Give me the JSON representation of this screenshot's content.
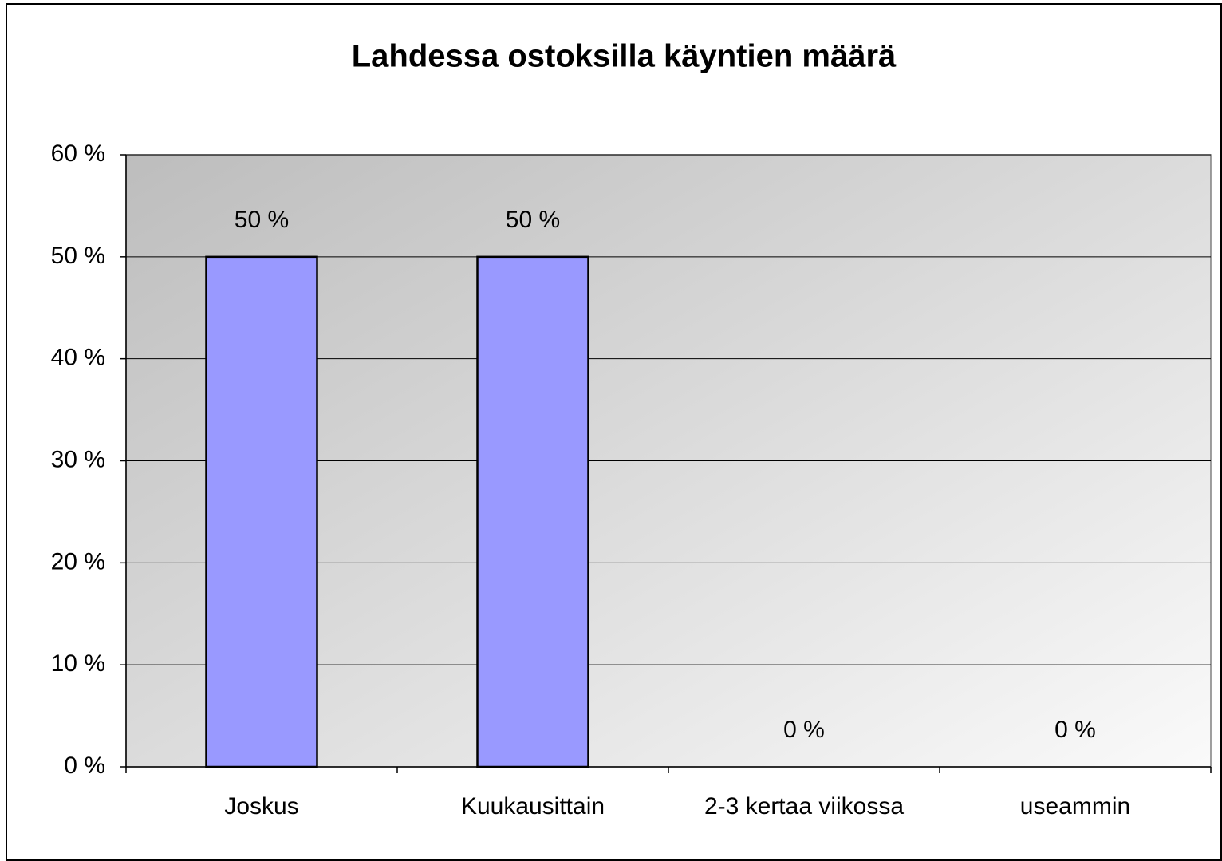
{
  "chart_data": {
    "type": "bar",
    "title": "Lahdessa ostoksilla käyntien määrä",
    "categories": [
      "Joskus",
      "Kuukausittain",
      "2-3 kertaa viikossa",
      "useammin"
    ],
    "values": [
      50,
      50,
      0,
      0
    ],
    "value_labels": [
      "50 %",
      "50 %",
      "0 %",
      "0 %"
    ],
    "color": "#9999ff",
    "ylim": [
      0,
      60
    ],
    "yticks": [
      {
        "value": 0,
        "label": "0 %"
      },
      {
        "value": 10,
        "label": "10 %"
      },
      {
        "value": 20,
        "label": "20 %"
      },
      {
        "value": 30,
        "label": "30 %"
      },
      {
        "value": 40,
        "label": "40 %"
      },
      {
        "value": 50,
        "label": "50 %"
      },
      {
        "value": 60,
        "label": "60 %"
      }
    ],
    "grid": true
  }
}
